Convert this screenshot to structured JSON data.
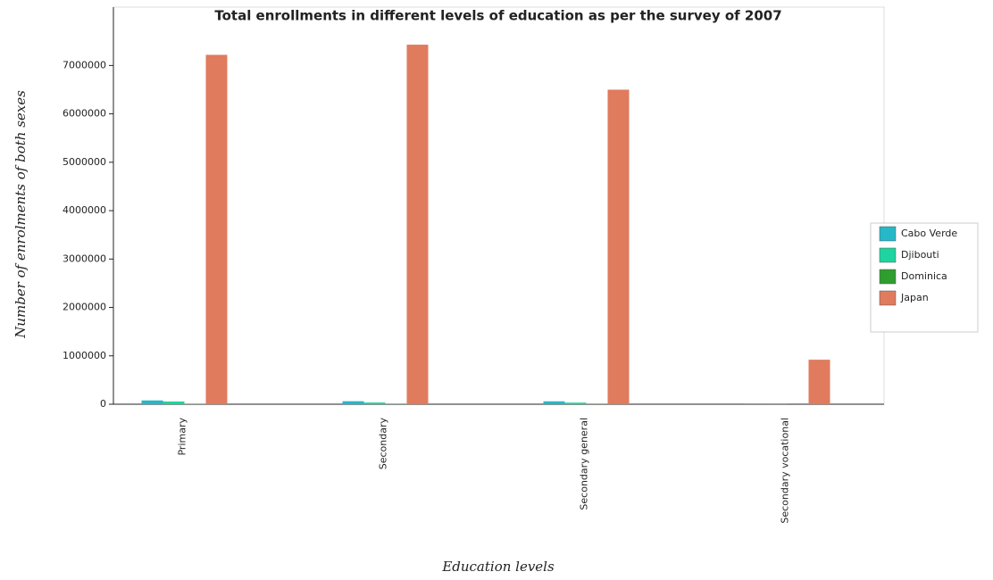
{
  "chart_data": {
    "type": "bar",
    "title": "Total enrollments in different levels of education as per the survey of 2007",
    "x_label": "Education levels",
    "y_label": "Number of enrolments of both sexes",
    "categories": [
      "Primary",
      "Secondary",
      "Secondary general",
      "Secondary vocational"
    ],
    "series": [
      {
        "name": "Cabo Verde",
        "color": "#26b8c8",
        "values": [
          78000,
          62000,
          60000,
          2000
        ]
      },
      {
        "name": "Djibouti",
        "color": "#1ed4a0",
        "values": [
          56000,
          35000,
          33000,
          2000
        ]
      },
      {
        "name": "Dominica",
        "color": "#2e9e2e",
        "values": [
          8000,
          7000,
          6500,
          300
        ]
      },
      {
        "name": "Japan",
        "color": "#e07b5e",
        "values": [
          7220000,
          7430000,
          6500000,
          920000
        ]
      }
    ],
    "ylim": [
      0,
      7800000
    ],
    "yticks": [
      0,
      1000000,
      2000000,
      3000000,
      4000000,
      5000000,
      6000000,
      7000000
    ],
    "grid": false,
    "legend": "right"
  }
}
